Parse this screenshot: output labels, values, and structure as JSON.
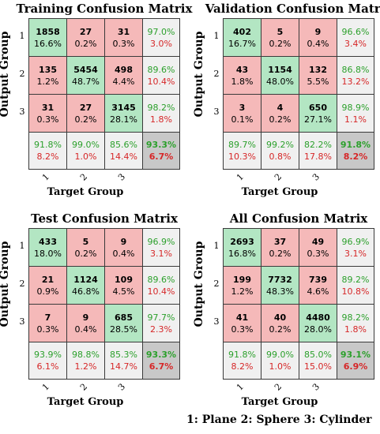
{
  "legend": "1: Plane  2: Sphere  3: Cylinder",
  "chart_data": [
    {
      "type": "table",
      "title": "Training Confusion Matrix",
      "xlabel": "Target Group",
      "ylabel": "Output Group",
      "classes": [
        "1",
        "2",
        "3"
      ],
      "counts": [
        [
          1858,
          27,
          31
        ],
        [
          135,
          5454,
          498
        ],
        [
          31,
          27,
          3145
        ]
      ],
      "cell_pct": [
        [
          "16.6%",
          "0.2%",
          "0.3%"
        ],
        [
          "1.2%",
          "48.7%",
          "4.4%"
        ],
        [
          "0.3%",
          "0.2%",
          "28.1%"
        ]
      ],
      "row_summary": [
        [
          "97.0%",
          "3.0%"
        ],
        [
          "89.6%",
          "10.4%"
        ],
        [
          "98.2%",
          "1.8%"
        ]
      ],
      "col_summary": [
        [
          "91.8%",
          "8.2%"
        ],
        [
          "99.0%",
          "1.0%"
        ],
        [
          "85.6%",
          "14.4%"
        ]
      ],
      "overall": [
        "93.3%",
        "6.7%"
      ]
    },
    {
      "type": "table",
      "title": "Validation Confusion Matrix",
      "xlabel": "Target Group",
      "ylabel": "Output Group",
      "classes": [
        "1",
        "2",
        "3"
      ],
      "counts": [
        [
          402,
          5,
          9
        ],
        [
          43,
          1154,
          132
        ],
        [
          3,
          4,
          650
        ]
      ],
      "cell_pct": [
        [
          "16.7%",
          "0.2%",
          "0.4%"
        ],
        [
          "1.8%",
          "48.0%",
          "5.5%"
        ],
        [
          "0.1%",
          "0.2%",
          "27.1%"
        ]
      ],
      "row_summary": [
        [
          "96.6%",
          "3.4%"
        ],
        [
          "86.8%",
          "13.2%"
        ],
        [
          "98.9%",
          "1.1%"
        ]
      ],
      "col_summary": [
        [
          "89.7%",
          "10.3%"
        ],
        [
          "99.2%",
          "0.8%"
        ],
        [
          "82.2%",
          "17.8%"
        ]
      ],
      "overall": [
        "91.8%",
        "8.2%"
      ]
    },
    {
      "type": "table",
      "title": "Test Confusion Matrix",
      "xlabel": "Target Group",
      "ylabel": "Output Group",
      "classes": [
        "1",
        "2",
        "3"
      ],
      "counts": [
        [
          433,
          5,
          9
        ],
        [
          21,
          1124,
          109
        ],
        [
          7,
          9,
          685
        ]
      ],
      "cell_pct": [
        [
          "18.0%",
          "0.2%",
          "0.4%"
        ],
        [
          "0.9%",
          "46.8%",
          "4.5%"
        ],
        [
          "0.3%",
          "0.4%",
          "28.5%"
        ]
      ],
      "row_summary": [
        [
          "96.9%",
          "3.1%"
        ],
        [
          "89.6%",
          "10.4%"
        ],
        [
          "97.7%",
          "2.3%"
        ]
      ],
      "col_summary": [
        [
          "93.9%",
          "6.1%"
        ],
        [
          "98.8%",
          "1.2%"
        ],
        [
          "85.3%",
          "14.7%"
        ]
      ],
      "overall": [
        "93.3%",
        "6.7%"
      ]
    },
    {
      "type": "table",
      "title": "All Confusion Matrix",
      "xlabel": "Target Group",
      "ylabel": "Output Group",
      "classes": [
        "1",
        "2",
        "3"
      ],
      "counts": [
        [
          2693,
          37,
          49
        ],
        [
          199,
          7732,
          739
        ],
        [
          41,
          40,
          4480
        ]
      ],
      "cell_pct": [
        [
          "16.8%",
          "0.2%",
          "0.3%"
        ],
        [
          "1.2%",
          "48.3%",
          "4.6%"
        ],
        [
          "0.3%",
          "0.2%",
          "28.0%"
        ]
      ],
      "row_summary": [
        [
          "96.9%",
          "3.1%"
        ],
        [
          "89.2%",
          "10.8%"
        ],
        [
          "98.2%",
          "1.8%"
        ]
      ],
      "col_summary": [
        [
          "91.8%",
          "8.2%"
        ],
        [
          "99.0%",
          "1.0%"
        ],
        [
          "85.0%",
          "15.0%"
        ]
      ],
      "overall": [
        "93.1%",
        "6.9%"
      ]
    }
  ]
}
